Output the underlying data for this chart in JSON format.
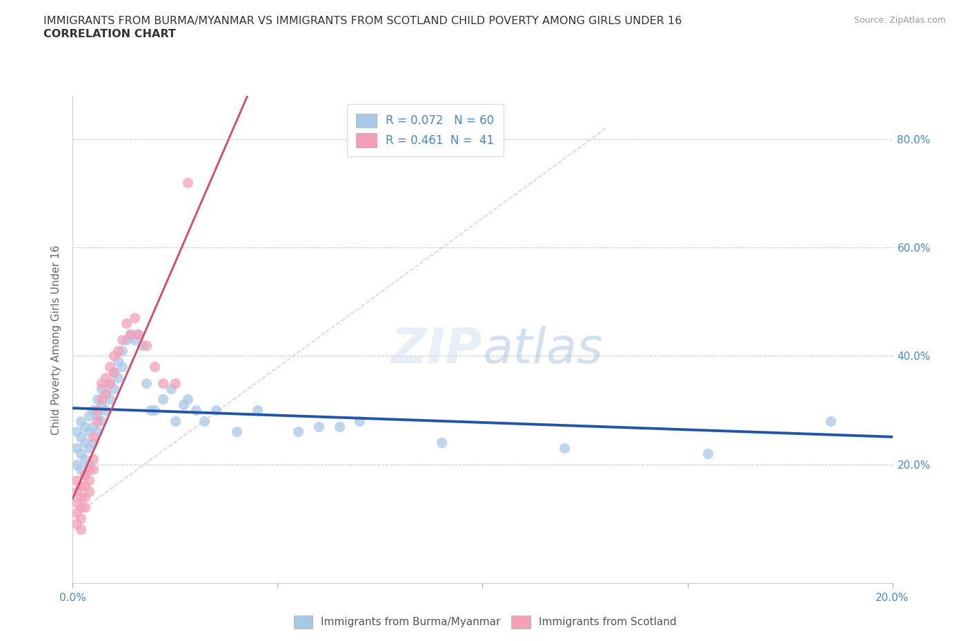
{
  "title_line1": "IMMIGRANTS FROM BURMA/MYANMAR VS IMMIGRANTS FROM SCOTLAND CHILD POVERTY AMONG GIRLS UNDER 16",
  "title_line2": "CORRELATION CHART",
  "source": "Source: ZipAtlas.com",
  "ylabel": "Child Poverty Among Girls Under 16",
  "xlim": [
    0.0,
    0.2
  ],
  "ylim": [
    -0.02,
    0.88
  ],
  "R_burma": 0.072,
  "N_burma": 60,
  "R_scotland": 0.461,
  "N_scotland": 41,
  "color_burma": "#a8c8e8",
  "color_scotland": "#f4a0b8",
  "color_burma_line": "#2255aa",
  "color_scotland_line": "#dd4466",
  "color_trendline_dashed": "#f4a0b8",
  "legend_label_burma": "Immigrants from Burma/Myanmar",
  "legend_label_scotland": "Immigrants from Scotland",
  "watermark_zip": "ZIP",
  "watermark_atlas": "atlas",
  "background_color": "#ffffff",
  "grid_color": "#cccccc",
  "title_color": "#333333",
  "axis_color": "#4488cc",
  "burma_x": [
    0.001,
    0.001,
    0.001,
    0.002,
    0.002,
    0.002,
    0.002,
    0.003,
    0.003,
    0.003,
    0.003,
    0.004,
    0.004,
    0.004,
    0.004,
    0.005,
    0.005,
    0.005,
    0.006,
    0.006,
    0.006,
    0.007,
    0.007,
    0.007,
    0.008,
    0.008,
    0.009,
    0.009,
    0.01,
    0.01,
    0.011,
    0.011,
    0.012,
    0.012,
    0.013,
    0.014,
    0.015,
    0.016,
    0.017,
    0.018,
    0.019,
    0.02,
    0.022,
    0.024,
    0.025,
    0.027,
    0.028,
    0.03,
    0.032,
    0.035,
    0.04,
    0.045,
    0.055,
    0.06,
    0.065,
    0.07,
    0.09,
    0.12,
    0.155,
    0.185
  ],
  "burma_y": [
    0.26,
    0.23,
    0.2,
    0.28,
    0.25,
    0.22,
    0.19,
    0.27,
    0.24,
    0.21,
    0.18,
    0.29,
    0.26,
    0.23,
    0.2,
    0.3,
    0.27,
    0.24,
    0.32,
    0.29,
    0.26,
    0.34,
    0.31,
    0.28,
    0.33,
    0.3,
    0.35,
    0.32,
    0.37,
    0.34,
    0.39,
    0.36,
    0.41,
    0.38,
    0.43,
    0.44,
    0.43,
    0.44,
    0.42,
    0.35,
    0.3,
    0.3,
    0.32,
    0.34,
    0.28,
    0.31,
    0.32,
    0.3,
    0.28,
    0.3,
    0.26,
    0.3,
    0.26,
    0.27,
    0.27,
    0.28,
    0.24,
    0.23,
    0.22,
    0.28
  ],
  "scotland_x": [
    0.001,
    0.001,
    0.001,
    0.001,
    0.001,
    0.002,
    0.002,
    0.002,
    0.002,
    0.002,
    0.003,
    0.003,
    0.003,
    0.003,
    0.004,
    0.004,
    0.004,
    0.005,
    0.005,
    0.005,
    0.006,
    0.006,
    0.007,
    0.007,
    0.008,
    0.008,
    0.009,
    0.009,
    0.01,
    0.01,
    0.011,
    0.012,
    0.013,
    0.014,
    0.015,
    0.016,
    0.018,
    0.02,
    0.022,
    0.025,
    0.028
  ],
  "scotland_y": [
    0.17,
    0.15,
    0.13,
    0.11,
    0.09,
    0.16,
    0.14,
    0.12,
    0.1,
    0.08,
    0.18,
    0.16,
    0.14,
    0.12,
    0.19,
    0.17,
    0.15,
    0.21,
    0.19,
    0.25,
    0.28,
    0.3,
    0.32,
    0.35,
    0.36,
    0.33,
    0.38,
    0.35,
    0.4,
    0.37,
    0.41,
    0.43,
    0.46,
    0.44,
    0.47,
    0.44,
    0.42,
    0.38,
    0.35,
    0.35,
    0.72
  ]
}
